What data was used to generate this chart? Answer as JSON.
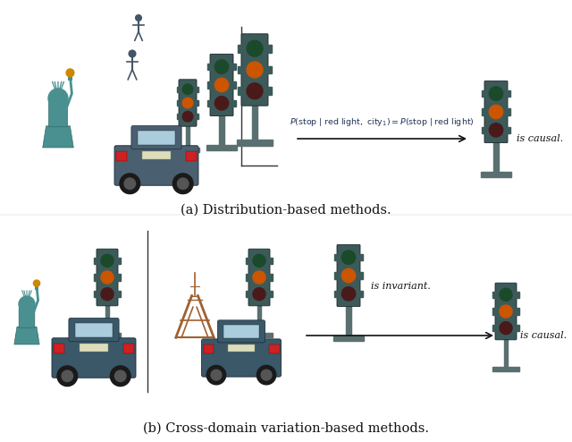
{
  "fig_width": 6.4,
  "fig_height": 4.94,
  "dpi": 100,
  "bg_color": "#ffffff",
  "top_caption": "(a) Distribution-based methods.",
  "bottom_caption": "(b) Cross-domain variation-based methods.",
  "top_is_causal": "is causal.",
  "bottom_is_invariant": "is invariant.",
  "bottom_is_causal": "is causal.",
  "caption_fontsize": 10.5,
  "formula_fontsize": 6.8,
  "label_fontsize": 8.0,
  "text_color": "#111111",
  "arrow_color": "#111111",
  "line_color": "#333333",
  "tl_housing": "#3d5a5a",
  "tl_pole": "#5a7070",
  "tl_green_off": "#1a4a2a",
  "tl_orange_on": "#cc5500",
  "tl_red_off": "#4a1a1a",
  "tl_green_on": "#117722",
  "car_body": "#4a6070",
  "car_roof": "#3a5060",
  "car_window": "#aaccdd",
  "car_light": "#cc2222",
  "car_plate": "#ddddbb",
  "statue_color": "#4a9090",
  "eiffel_color": "#a06030"
}
